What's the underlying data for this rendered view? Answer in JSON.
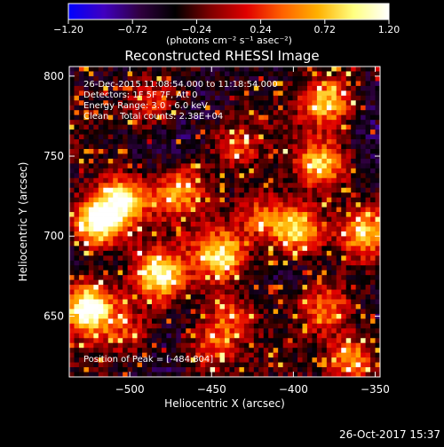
{
  "chart_data": {
    "type": "heatmap",
    "title": "Reconstructed RHESSI Image",
    "xlabel": "Heliocentric X (arcsec)",
    "ylabel": "Heliocentric Y (arcsec)",
    "xlim": [
      -537,
      -347
    ],
    "ylim": [
      612,
      806
    ],
    "x_ticks": [
      -500,
      -450,
      -400,
      -350
    ],
    "x_tick_labels": [
      "−500",
      "−450",
      "−400",
      "−350"
    ],
    "y_ticks": [
      650,
      700,
      750,
      800
    ],
    "y_tick_labels": [
      "650",
      "700",
      "750",
      "800"
    ],
    "colorbar": {
      "min": -1.2,
      "max": 1.2,
      "ticks": [
        -1.2,
        -0.72,
        -0.24,
        0.24,
        0.72,
        1.2
      ],
      "tick_labels": [
        "−1.20",
        "−0.72",
        "−0.24",
        "0.24",
        "0.72",
        "1.20"
      ],
      "unit_label": "(photons cm⁻² s⁻¹ asec⁻²)",
      "colors": [
        "#0000ff",
        "#4000c0",
        "#300040",
        "#000000",
        "#800000",
        "#e00000",
        "#ff6000",
        "#ffb000",
        "#ffff80",
        "#ffffff"
      ]
    },
    "grid": false,
    "annotations": [
      "26-Dec-2015 11:08:54.000 to 11:18:54.000",
      "Detectors: 1F 5F 7F, Att 0",
      "Energy Range: 3.0 - 6.0 keV",
      "Clean    Total counts: 2.38E+04"
    ],
    "peak_label": "Position of Peak = [-484,804]",
    "sources": [
      {
        "x": -525,
        "y": 655,
        "peak": 1.15
      },
      {
        "x": -520,
        "y": 708,
        "peak": 1.15
      },
      {
        "x": -505,
        "y": 722,
        "peak": 0.9
      },
      {
        "x": -482,
        "y": 675,
        "peak": 1.0
      },
      {
        "x": -470,
        "y": 728,
        "peak": 0.7
      },
      {
        "x": -444,
        "y": 688,
        "peak": 0.95
      },
      {
        "x": -420,
        "y": 712,
        "peak": 0.55
      },
      {
        "x": -398,
        "y": 704,
        "peak": 1.0
      },
      {
        "x": -383,
        "y": 745,
        "peak": 0.8
      },
      {
        "x": -379,
        "y": 784,
        "peak": 0.8
      },
      {
        "x": -357,
        "y": 702,
        "peak": 0.7
      },
      {
        "x": -436,
        "y": 756,
        "peak": 0.45
      },
      {
        "x": -440,
        "y": 648,
        "peak": 0.5
      },
      {
        "x": -380,
        "y": 655,
        "peak": 0.6
      },
      {
        "x": -363,
        "y": 622,
        "peak": 0.75
      },
      {
        "x": -500,
        "y": 640,
        "peak": 0.4
      },
      {
        "x": -486,
        "y": 783,
        "peak": 0.5
      },
      {
        "x": -452,
        "y": 628,
        "peak": 0.5
      }
    ]
  },
  "footer": {
    "timestamp": "26-Oct-2017 15:37"
  }
}
